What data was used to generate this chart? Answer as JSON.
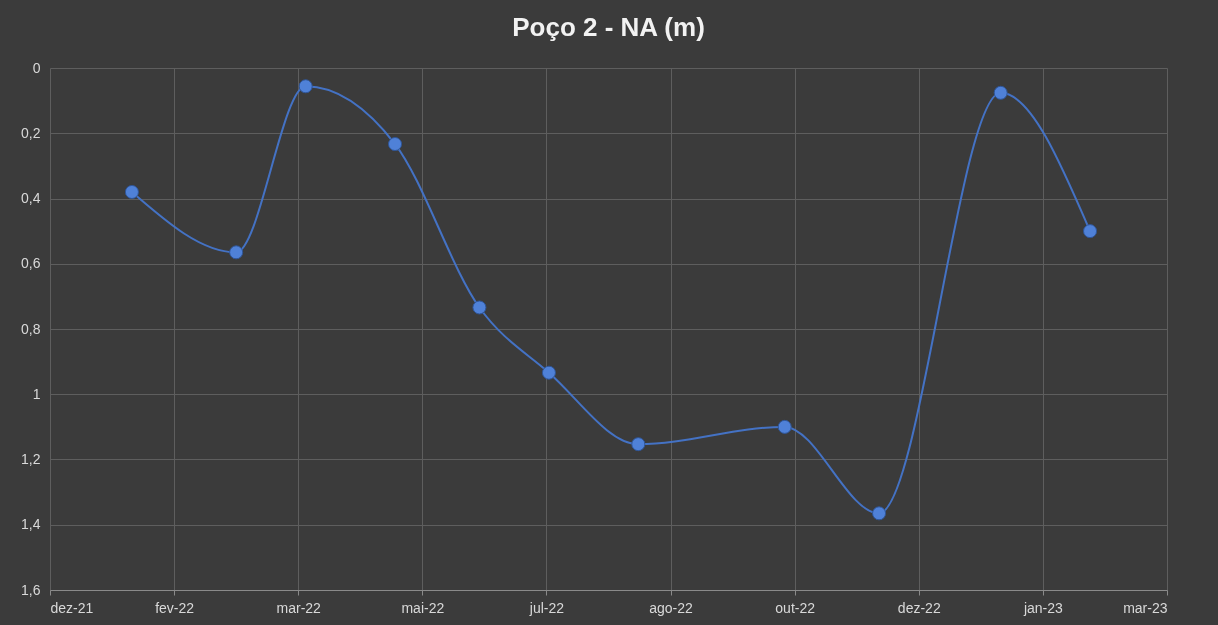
{
  "chart_data": {
    "type": "line",
    "title": "Poço 2 - NA (m)",
    "x": [
      "2022-01-22",
      "2022-03-05",
      "2022-04-02",
      "2022-05-08",
      "2022-06-11",
      "2022-07-09",
      "2022-08-14",
      "2022-10-12",
      "2022-11-19",
      "2023-01-07",
      "2023-02-12"
    ],
    "series": [
      {
        "color": "#4472c4",
        "values": [
          0.38,
          0.565,
          0.056,
          0.233,
          0.734,
          0.934,
          1.153,
          1.1,
          1.365,
          0.076,
          0.5
        ]
      }
    ],
    "ylim": [
      1.6,
      0
    ],
    "yticks": [
      {
        "value": 0,
        "label": "0"
      },
      {
        "value": 0.2,
        "label": "0,2"
      },
      {
        "value": 0.4,
        "label": "0,4"
      },
      {
        "value": 0.6,
        "label": "0,6"
      },
      {
        "value": 0.8,
        "label": "0,8"
      },
      {
        "value": 1,
        "label": "1"
      },
      {
        "value": 1.2,
        "label": "1,2"
      },
      {
        "value": 1.4,
        "label": "1,4"
      },
      {
        "value": 1.6,
        "label": "1,6"
      }
    ],
    "xlim": [
      "2021-12-20",
      "2023-03-15"
    ],
    "xticks": [
      {
        "value": "2021-12-20",
        "label": "dez-21"
      },
      {
        "value": "2022-02-08",
        "label": "fev-22"
      },
      {
        "value": "2022-03-30",
        "label": "mar-22"
      },
      {
        "value": "2022-05-19",
        "label": "mai-22"
      },
      {
        "value": "2022-07-08",
        "label": "jul-22"
      },
      {
        "value": "2022-08-27",
        "label": "ago-22"
      },
      {
        "value": "2022-10-16",
        "label": "out-22"
      },
      {
        "value": "2022-12-05",
        "label": "dez-22"
      },
      {
        "value": "2023-01-24",
        "label": "jan-23"
      },
      {
        "value": "2023-03-15",
        "label": "mar-23"
      }
    ],
    "grid": true,
    "marker": "circle",
    "line_style": "solid"
  }
}
